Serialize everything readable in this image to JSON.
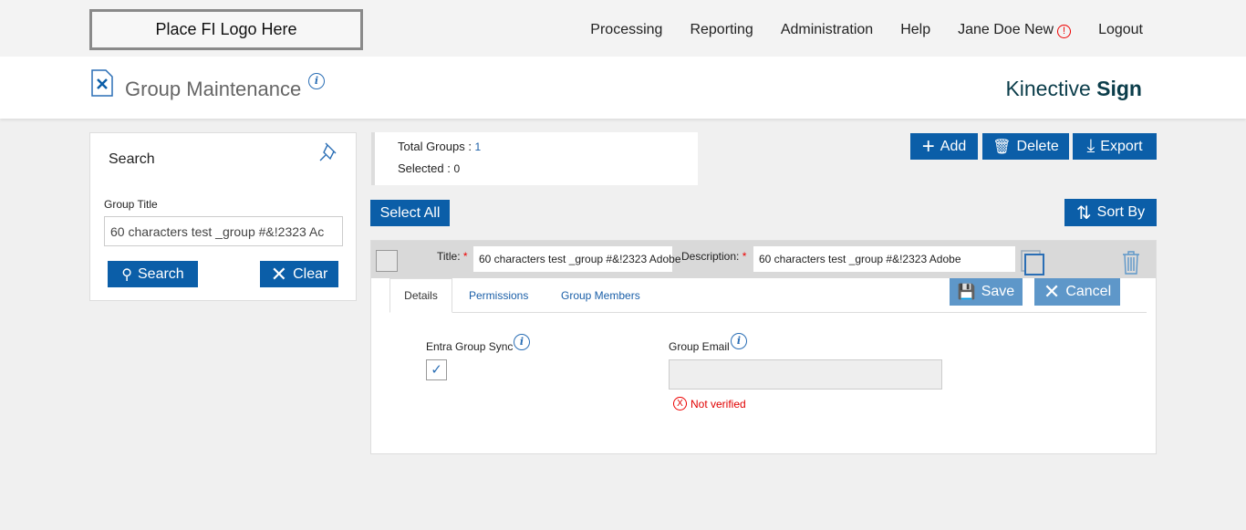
{
  "header": {
    "logo": "Place FI Logo Here",
    "nav": [
      "Processing",
      "Reporting",
      "Administration",
      "Help",
      "Jane Doe New",
      "Logout"
    ],
    "warning_icon": "!"
  },
  "page": {
    "title": "Group Maintenance",
    "info_icon": "i",
    "brand_light": "Kinective ",
    "brand_bold": "Sign"
  },
  "search": {
    "title": "Search",
    "field_label": "Group Title",
    "field_value": "60 characters test _group #&!2323 Ac",
    "search_label": "Search",
    "clear_label": "Clear"
  },
  "summary": {
    "total_label": "Total Groups : ",
    "total": "1",
    "selected_label": "Selected : ",
    "selected": "0"
  },
  "toolbar": {
    "add": "Add",
    "delete": "Delete",
    "export": "Export",
    "select_all": "Select All",
    "sort_by": "Sort By"
  },
  "group": {
    "title_label": "Title:",
    "title_value": "60 characters test _group #&!2323 Adobe",
    "desc_label": "Description:",
    "desc_value": "60 characters test _group #&!2323 Adobe",
    "required": "*",
    "tabs": [
      "Details",
      "Permissions",
      "Group Members"
    ],
    "save": "Save",
    "cancel": "Cancel",
    "sync_label": "Entra Group Sync",
    "sync_checked": true,
    "email_label": "Group Email",
    "email_value": "",
    "not_verified": "Not verified"
  },
  "colors": {
    "primary": "#0b5ea8",
    "disabled": "#5e97c9",
    "error": "#e00000"
  }
}
